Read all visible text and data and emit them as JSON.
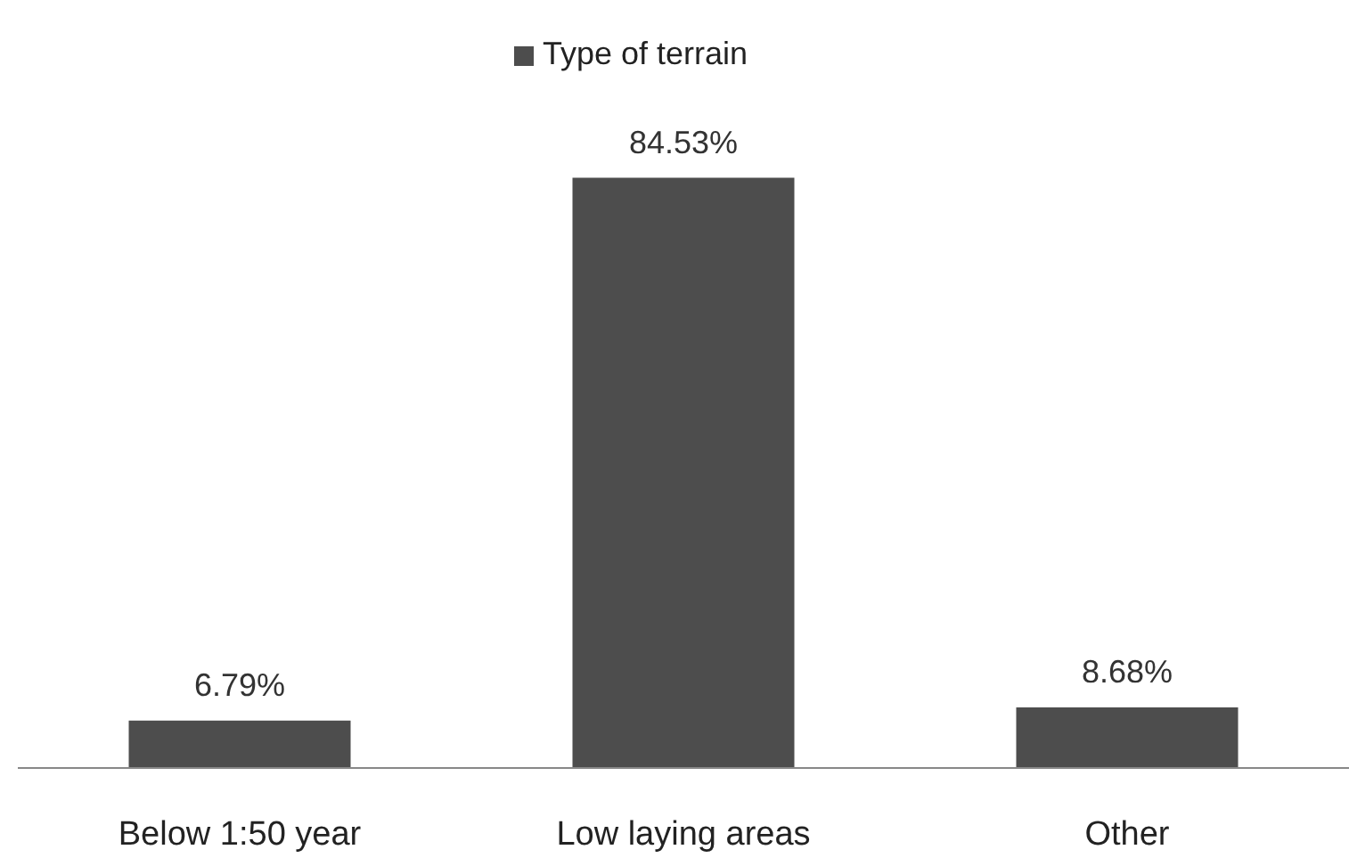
{
  "chart_data": {
    "type": "bar",
    "categories": [
      "Below 1:50 year",
      "Low laying areas",
      "Other"
    ],
    "series": [
      {
        "name": "Type of terrain",
        "color": "#4d4d4d",
        "values": [
          6.79,
          84.53,
          8.68
        ],
        "value_labels": [
          "6.79%",
          "84.53%",
          "8.68%"
        ]
      }
    ],
    "legend": "top"
  }
}
